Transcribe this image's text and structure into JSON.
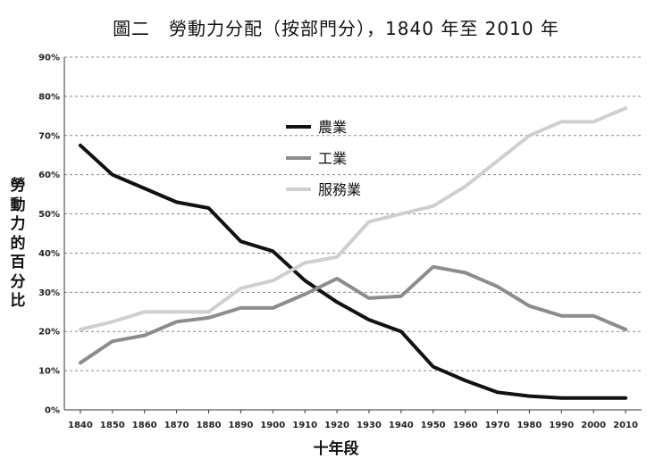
{
  "chart_data": {
    "type": "line",
    "title": "圖二　勞動力分配（按部門分），1840 年至 2010 年",
    "xlabel": "十年段",
    "ylabel": "勞動力的百分比",
    "x": [
      "1840",
      "1850",
      "1860",
      "1870",
      "1880",
      "1890",
      "1900",
      "1910",
      "1920",
      "1930",
      "1940",
      "1950",
      "1960",
      "1970",
      "1980",
      "1990",
      "2000",
      "2010"
    ],
    "ylim": [
      0,
      90
    ],
    "yticks": [
      "0%",
      "10%",
      "20%",
      "30%",
      "40%",
      "50%",
      "60%",
      "70%",
      "80%",
      "90%"
    ],
    "grid": "horizontal dashed",
    "legend_position": "upper-center",
    "series": [
      {
        "name": "農業",
        "color": "#111111",
        "values": [
          67.5,
          60,
          56.5,
          53,
          51.5,
          43,
          40.5,
          33,
          27.5,
          23,
          20,
          11,
          7.5,
          4.5,
          3.5,
          3,
          3,
          3
        ]
      },
      {
        "name": "工業",
        "color": "#8c8c8c",
        "values": [
          12,
          17.5,
          19,
          22.5,
          23.5,
          26,
          26,
          29.5,
          33.5,
          28.5,
          29,
          36.5,
          35,
          31.5,
          26.5,
          24,
          24,
          20.5
        ]
      },
      {
        "name": "服務業",
        "color": "#cfcfcf",
        "values": [
          20.5,
          22.5,
          25,
          25,
          25,
          31,
          33,
          37.5,
          39,
          48,
          50,
          52,
          57,
          63.5,
          70,
          73.5,
          73.5,
          77
        ]
      }
    ]
  }
}
